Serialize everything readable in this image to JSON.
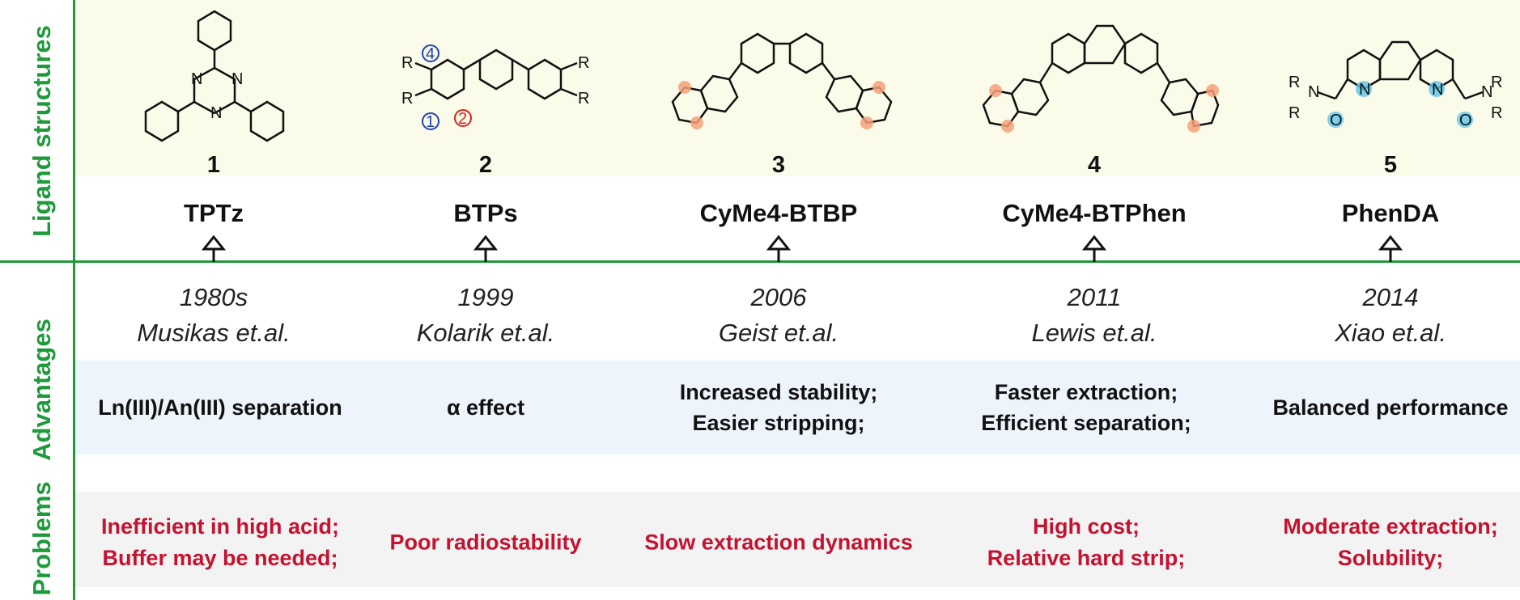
{
  "side_labels": {
    "ligand_structures": "Ligand structures",
    "advantages": "Advantages",
    "problems": "Problems"
  },
  "ligands": [
    {
      "number": "1",
      "name": "TPTz",
      "year": "1980s",
      "authors": "Musikas et.al.",
      "advantages": [
        "Ln(III)/An(III) separation"
      ],
      "problems": [
        "Inefficient in high acid;",
        "Buffer may be needed;"
      ]
    },
    {
      "number": "2",
      "name": "BTPs",
      "year": "1999",
      "authors": "Kolarik et.al.",
      "advantages": [
        "α effect"
      ],
      "problems": [
        "Poor radiostability"
      ]
    },
    {
      "number": "3",
      "name": "CyMe4-BTBP",
      "year": "2006",
      "authors": "Geist et.al.",
      "advantages": [
        "Increased stability;",
        "Easier stripping;"
      ],
      "problems": [
        "Slow extraction dynamics"
      ]
    },
    {
      "number": "4",
      "name": "CyMe4-BTPhen",
      "year": "2011",
      "authors": "Lewis et.al.",
      "advantages": [
        "Faster extraction;",
        "Efficient separation;"
      ],
      "problems": [
        "High cost;",
        "Relative hard strip;"
      ]
    },
    {
      "number": "5",
      "name": "PhenDA",
      "year": "2014",
      "authors": "Xiao et.al.",
      "advantages": [
        "Balanced performance"
      ],
      "problems": [
        "Moderate extraction;",
        "Solubility;"
      ]
    }
  ],
  "structure_labels": {
    "atom_N": "N",
    "atom_O": "O",
    "group_R": "R",
    "pos_1": "1",
    "pos_2": "2",
    "pos_4": "4"
  },
  "colors": {
    "section_green": "#1f9a3a",
    "problem_red": "#c4122f",
    "structures_band": "#fbfbea",
    "advantages_band": "#eef4fb",
    "problems_band": "#f3f3f3",
    "highlight_orange": "#f4a07a",
    "highlight_cyan": "#5cc6ea",
    "circle_blue": "#1f3fbf",
    "circle_red": "#e02020"
  }
}
